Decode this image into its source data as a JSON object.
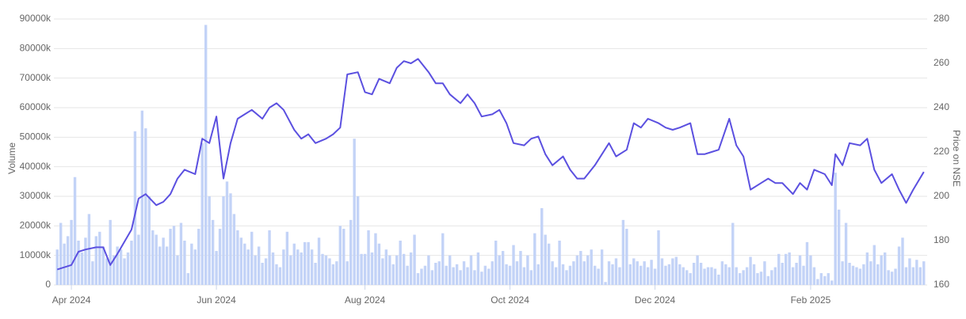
{
  "chart_data": {
    "type": "bar-line",
    "ylabel": "Volume",
    "y2label": "Price on NSE",
    "xlim": [
      -0.5,
      245.5
    ],
    "xticks": [
      {
        "value": 4,
        "label": "Apr 2024"
      },
      {
        "value": 45,
        "label": "Jun 2024"
      },
      {
        "value": 87,
        "label": "Aug 2024"
      },
      {
        "value": 128,
        "label": "Oct 2024"
      },
      {
        "value": 169,
        "label": "Dec 2024"
      },
      {
        "value": 213,
        "label": "Feb 2025"
      }
    ],
    "ylim": [
      0,
      90000000
    ],
    "yticks": [
      0,
      {
        "value": 10000000,
        "label": "10000k"
      },
      {
        "value": 20000000,
        "label": "20000k"
      },
      {
        "value": 30000000,
        "label": "30000k"
      },
      {
        "value": 40000000,
        "label": "40000k"
      },
      {
        "value": 50000000,
        "label": "50000k"
      },
      {
        "value": 60000000,
        "label": "60000k"
      },
      {
        "value": 70000000,
        "label": "70000k"
      },
      {
        "value": 80000000,
        "label": "80000k"
      },
      {
        "value": 90000000,
        "label": "90000k"
      }
    ],
    "y2lim": [
      160,
      280
    ],
    "y2ticks": [
      160,
      180,
      200,
      220,
      240,
      260,
      280
    ],
    "grid": true,
    "series": [
      {
        "type": "bar",
        "color": "#c3d3f7",
        "values": [
          12000000,
          21000000,
          14000000,
          16500000,
          22000000,
          36500000,
          15000000,
          11000000,
          16000000,
          24000000,
          8000000,
          16500000,
          18000000,
          13000000,
          9000000,
          22000000,
          10000000,
          13000000,
          12000000,
          9000000,
          11000000,
          15000000,
          52000000,
          17000000,
          59000000,
          53000000,
          30000000,
          18500000,
          17000000,
          13000000,
          16000000,
          13000000,
          19000000,
          20000000,
          10000000,
          21000000,
          15000000,
          4000000,
          14000000,
          12000000,
          19000000,
          48000000,
          88000000,
          30000000,
          22000000,
          11500000,
          19000000,
          30000000,
          35000000,
          31000000,
          24000000,
          18500000,
          16000000,
          14000000,
          12000000,
          18000000,
          10000000,
          13000000,
          7500000,
          9000000,
          18500000,
          11000000,
          7000000,
          6000000,
          12000000,
          18000000,
          10000000,
          14000000,
          12000000,
          11000000,
          14500000,
          14500000,
          12000000,
          7500000,
          16000000,
          10500000,
          10000000,
          9000000,
          7000000,
          8000000,
          20000000,
          19000000,
          8000000,
          22000000,
          49500000,
          30000000,
          10500000,
          10500000,
          18500000,
          11000000,
          17500000,
          14000000,
          9000000,
          12000000,
          10000000,
          7000000,
          10000000,
          15000000,
          10500000,
          6500000,
          11000000,
          17000000,
          4000000,
          5500000,
          6500000,
          10000000,
          5000000,
          7500000,
          8000000,
          17500000,
          6500000,
          10000000,
          6000000,
          7000000,
          5000000,
          8000000,
          6000000,
          10000000,
          5000000,
          11000000,
          4500000,
          6500000,
          5500000,
          8000000,
          15000000,
          10000000,
          11500000,
          7000000,
          6500000,
          13500000,
          8000000,
          11500000,
          6000000,
          10000000,
          5000000,
          17500000,
          7000000,
          26000000,
          17000000,
          14000000,
          8000000,
          6000000,
          15000000,
          7000000,
          5000000,
          6500000,
          8000000,
          10000000,
          11500000,
          8000000,
          10000000,
          12000000,
          6500000,
          5500000,
          12000000,
          1000000,
          8000000,
          7000000,
          9000000,
          6000000,
          22000000,
          19000000,
          7000000,
          9000000,
          8000000,
          6500000,
          8000000,
          6000000,
          8500000,
          5500000,
          18500000,
          9000000,
          6500000,
          7000000,
          9000000,
          9500000,
          7000000,
          6000000,
          5000000,
          4000000,
          7500000,
          10000000,
          7500000,
          5500000,
          6000000,
          6000000,
          5500000,
          3500000,
          8000000,
          7000000,
          6000000,
          21000000,
          6000000,
          4000000,
          5000000,
          6000000,
          9500000,
          7000000,
          4000000,
          4500000,
          8000000,
          3000000,
          5000000,
          6000000,
          10500000,
          7500000,
          10500000,
          11000000,
          6000000,
          7500000,
          10000000,
          6500000,
          14500000,
          10000000,
          6000000,
          2000000,
          4000000,
          3000000,
          4000000,
          1500000,
          38000000,
          25500000,
          8000000,
          21000000,
          7500000,
          6500000,
          6000000,
          5500000,
          7000000,
          11000000,
          8000000,
          13500000,
          7000000,
          10000000,
          11000000,
          5000000,
          4500000,
          5500000,
          13000000,
          16000000,
          6000000,
          9000000,
          6000000,
          8500000,
          6000000,
          8000000
        ]
      },
      {
        "type": "line",
        "axis": "y2",
        "color": "#5b50e0",
        "x": [
          0,
          4,
          6,
          8,
          11,
          13,
          15,
          17,
          21,
          23,
          25,
          28,
          30,
          32,
          34,
          36,
          39,
          41,
          43,
          45,
          47,
          49,
          51,
          53,
          55,
          58,
          60,
          62,
          64,
          67,
          69,
          71,
          73,
          76,
          78,
          80,
          82,
          85,
          87,
          89,
          91,
          94,
          96,
          98,
          100,
          102,
          105,
          107,
          109,
          111,
          114,
          116,
          118,
          120,
          123,
          125,
          127,
          129,
          132,
          134,
          136,
          138,
          140,
          143,
          145,
          147,
          149,
          152,
          154,
          156,
          158,
          161,
          163,
          165,
          167,
          170,
          172,
          174,
          176,
          179,
          181,
          183,
          185,
          187,
          190,
          192,
          194,
          196,
          199,
          201,
          203,
          205,
          208,
          210,
          212,
          214,
          217,
          219,
          220,
          222,
          224,
          227,
          229,
          231,
          233,
          236,
          238,
          240,
          242,
          245
        ],
        "values": [
          167,
          169,
          175,
          176,
          177,
          177,
          169,
          174,
          185,
          199,
          201,
          196,
          197.5,
          201,
          208,
          212,
          210,
          226,
          224,
          236,
          208,
          224,
          235,
          237,
          239,
          235,
          240,
          242,
          239,
          230,
          226,
          228,
          224,
          226,
          228,
          231,
          255,
          256,
          247,
          246,
          253,
          251,
          258,
          261,
          260,
          262,
          256,
          251,
          251,
          246,
          242,
          246,
          242,
          236,
          237,
          239,
          233,
          224,
          223,
          226,
          227,
          219,
          214,
          218,
          212,
          208,
          208,
          214,
          219,
          224,
          218,
          221,
          233,
          231,
          235,
          233,
          231,
          230,
          231,
          233,
          219,
          219,
          220,
          221,
          235,
          223,
          218,
          203,
          206,
          208,
          206,
          206,
          201,
          206,
          203,
          212,
          210,
          205,
          219,
          214,
          224,
          223,
          226,
          212,
          206,
          210,
          203,
          197,
          203,
          211
        ]
      }
    ]
  }
}
